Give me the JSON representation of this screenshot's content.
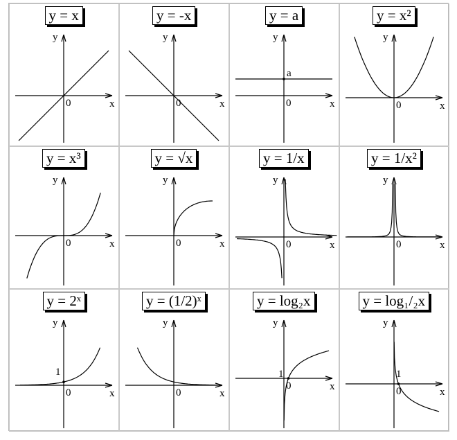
{
  "panels": [
    {
      "id": "linear",
      "title": "y = x",
      "fn": "linear",
      "labels": {
        "x": "x",
        "y": "y",
        "origin": "0"
      }
    },
    {
      "id": "neg-linear",
      "title": "y = -x",
      "fn": "neglinear",
      "labels": {
        "x": "x",
        "y": "y",
        "origin": "0"
      }
    },
    {
      "id": "constant",
      "title": "y = a",
      "fn": "constant",
      "labels": {
        "x": "x",
        "y": "y",
        "origin": "0",
        "mark": "a"
      }
    },
    {
      "id": "square",
      "title": "y = x²",
      "fn": "square",
      "labels": {
        "x": "x",
        "y": "y",
        "origin": "0"
      }
    },
    {
      "id": "cube",
      "title": "y = x³",
      "fn": "cube",
      "labels": {
        "x": "x",
        "y": "y",
        "origin": "0"
      }
    },
    {
      "id": "sqrt",
      "title": "y = √x",
      "fn": "sqrt",
      "labels": {
        "x": "x",
        "y": "y",
        "origin": "0"
      }
    },
    {
      "id": "reciprocal",
      "title": "y = 1/x",
      "fn": "reciprocal",
      "labels": {
        "x": "x",
        "y": "y",
        "origin": "0"
      }
    },
    {
      "id": "inv-square",
      "title": "y = 1/x²",
      "fn": "invsquare",
      "labels": {
        "x": "x",
        "y": "y",
        "origin": "0"
      }
    },
    {
      "id": "exp2",
      "title": "y = 2ˣ",
      "fn": "exp2",
      "labels": {
        "x": "x",
        "y": "y",
        "origin": "0",
        "mark": "1"
      }
    },
    {
      "id": "exp-half",
      "title": "y = (1/2)ˣ",
      "fn": "exphalf",
      "labels": {
        "x": "x",
        "y": "y",
        "origin": "0"
      }
    },
    {
      "id": "log2",
      "title": "y = log₂x",
      "fn": "log2",
      "labels": {
        "x": "x",
        "y": "y",
        "origin": "0",
        "mark": "1"
      }
    },
    {
      "id": "log-half",
      "title": "y = log₁/₂x",
      "fn": "loghalf",
      "labels": {
        "x": "x",
        "y": "y",
        "origin": "0",
        "mark": "1"
      }
    }
  ]
}
